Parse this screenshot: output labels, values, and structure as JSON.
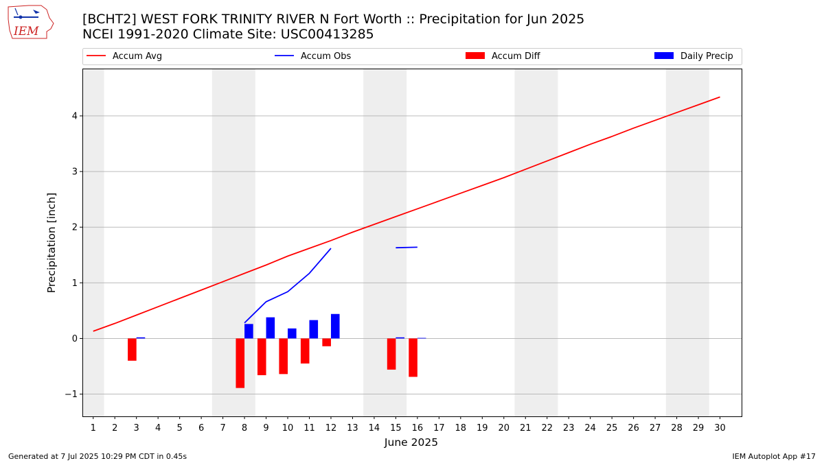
{
  "header": {
    "title_line1": "[BCHT2] WEST FORK TRINITY RIVER  N Fort Worth :: Precipitation for Jun 2025",
    "title_line2": "NCEI 1991-2020 Climate Site: USC00413285"
  },
  "logo": {
    "text": "IEM"
  },
  "footer": {
    "left": "Generated at 7 Jul 2025 10:29 PM CDT in 0.45s",
    "right": "IEM Autoplot App #17"
  },
  "colors": {
    "accum_avg": "#ff0000",
    "accum_obs": "#0000ff",
    "accum_diff": "#ff0000",
    "daily_precip": "#0000ff",
    "weekend_shade": "#eeeeee",
    "grid": "#b0b0b0"
  },
  "chart_data": {
    "type": "bar",
    "title": "[BCHT2] WEST FORK TRINITY RIVER  N Fort Worth :: Precipitation for Jun 2025",
    "subtitle": "NCEI 1991-2020 Climate Site: USC00413285",
    "xlabel": "June 2025",
    "ylabel": "Precipitation [inch]",
    "xlim": [
      0.5,
      31
    ],
    "ylim": [
      -1.4,
      4.85
    ],
    "yticks": [
      -1,
      0,
      1,
      2,
      3,
      4
    ],
    "ytick_labels": [
      "−1",
      "0",
      "1",
      "2",
      "3",
      "4"
    ],
    "xticks": [
      1,
      2,
      3,
      4,
      5,
      6,
      7,
      8,
      9,
      10,
      11,
      12,
      13,
      14,
      15,
      16,
      17,
      18,
      19,
      20,
      21,
      22,
      23,
      24,
      25,
      26,
      27,
      28,
      29,
      30
    ],
    "grid": "horizontal",
    "legend": {
      "placement": "top",
      "entries": [
        {
          "label": "Accum Avg",
          "kind": "line",
          "color": "#ff0000"
        },
        {
          "label": "Accum Obs",
          "kind": "line",
          "color": "#0000ff"
        },
        {
          "label": "Accum Diff",
          "kind": "bar",
          "color": "#ff0000"
        },
        {
          "label": "Daily Precip",
          "kind": "bar",
          "color": "#0000ff"
        }
      ]
    },
    "weekend_days": [
      1,
      7,
      8,
      14,
      15,
      21,
      22,
      28,
      29
    ],
    "series": [
      {
        "name": "Accum Avg",
        "kind": "line",
        "x": [
          1,
          2,
          3,
          4,
          5,
          6,
          7,
          8,
          9,
          10,
          11,
          12,
          13,
          14,
          15,
          16,
          17,
          18,
          19,
          20,
          21,
          22,
          23,
          24,
          25,
          26,
          27,
          28,
          29,
          30
        ],
        "values": [
          0.13,
          0.27,
          0.42,
          0.57,
          0.72,
          0.87,
          1.02,
          1.17,
          1.32,
          1.48,
          1.62,
          1.76,
          1.91,
          2.05,
          2.19,
          2.33,
          2.47,
          2.61,
          2.75,
          2.89,
          3.04,
          3.19,
          3.34,
          3.49,
          3.63,
          3.78,
          3.92,
          4.06,
          4.2,
          4.34
        ]
      },
      {
        "name": "Accum Obs",
        "kind": "line",
        "x": [
          8,
          9,
          10,
          11,
          12,
          15,
          16
        ],
        "values": [
          0.28,
          0.66,
          0.84,
          1.17,
          1.62,
          1.63,
          1.64
        ],
        "segments": [
          [
            8,
            9,
            10,
            11,
            12
          ],
          [
            15,
            16
          ]
        ]
      },
      {
        "name": "Accum Diff",
        "kind": "bar",
        "x": [
          3,
          8,
          9,
          10,
          11,
          12,
          15,
          16
        ],
        "values": [
          -0.4,
          -0.89,
          -0.66,
          -0.64,
          -0.45,
          -0.14,
          -0.56,
          -0.69
        ]
      },
      {
        "name": "Daily Precip",
        "kind": "bar",
        "x": [
          3,
          8,
          9,
          10,
          11,
          12,
          15,
          16
        ],
        "values": [
          0.02,
          0.26,
          0.38,
          0.18,
          0.33,
          0.44,
          0.02,
          0.01
        ]
      }
    ]
  }
}
